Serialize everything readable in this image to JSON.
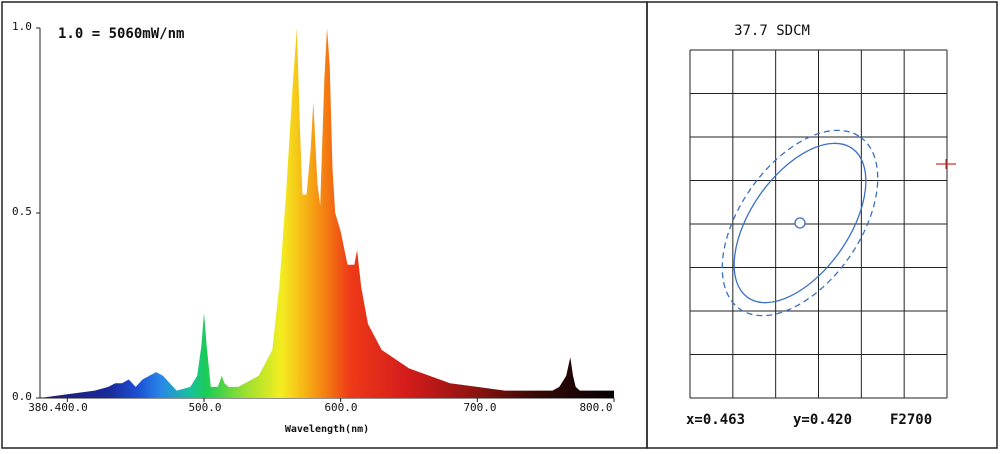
{
  "chart_data": [
    {
      "type": "area",
      "title": "1.0 = 5060mW/nm",
      "xlabel": "Wavelength(nm)",
      "ylabel": "",
      "xlim": [
        380,
        800
      ],
      "ylim": [
        0,
        1.0
      ],
      "x_tick_labels": [
        "380.400.0",
        "500.0",
        "600.0",
        "700.0",
        "800.0"
      ],
      "x_ticks": [
        400,
        500,
        600,
        700,
        800
      ],
      "y_ticks": [
        0.0,
        0.5,
        1.0
      ],
      "y_tick_labels": [
        "0.0",
        "0.5",
        "1.0"
      ],
      "grid": false,
      "series": [
        {
          "x": [
            380,
            400,
            420,
            430,
            435,
            440,
            445,
            450,
            455,
            460,
            465,
            470,
            475,
            480,
            490,
            495,
            498,
            500,
            502,
            505,
            510,
            513,
            515,
            518,
            525,
            540,
            550,
            555,
            560,
            565,
            568,
            570,
            572,
            575,
            578,
            580,
            583,
            585,
            588,
            590,
            592,
            594,
            596,
            600,
            605,
            610,
            612,
            615,
            620,
            630,
            650,
            680,
            700,
            720,
            740,
            755,
            760,
            765,
            768,
            770,
            772,
            775,
            780,
            800
          ],
          "values": [
            0.0,
            0.01,
            0.02,
            0.03,
            0.04,
            0.04,
            0.05,
            0.03,
            0.05,
            0.06,
            0.07,
            0.06,
            0.04,
            0.02,
            0.03,
            0.06,
            0.14,
            0.23,
            0.14,
            0.03,
            0.03,
            0.06,
            0.04,
            0.03,
            0.03,
            0.06,
            0.13,
            0.3,
            0.55,
            0.85,
            1.0,
            0.75,
            0.55,
            0.55,
            0.67,
            0.8,
            0.58,
            0.52,
            0.86,
            1.0,
            0.9,
            0.62,
            0.5,
            0.45,
            0.36,
            0.36,
            0.4,
            0.3,
            0.2,
            0.13,
            0.08,
            0.04,
            0.03,
            0.02,
            0.02,
            0.02,
            0.03,
            0.06,
            0.11,
            0.06,
            0.03,
            0.02,
            0.02,
            0.02
          ]
        }
      ]
    },
    {
      "type": "scatter",
      "title": "37.7 SDCM",
      "point": {
        "x": 0.463,
        "y": 0.42
      },
      "grid": true,
      "labels": {
        "x": "x=0.463",
        "y": "y=0.420",
        "cct": "F2700"
      }
    }
  ],
  "colors": {
    "border": "#222222",
    "grid": "#222222",
    "ellipse": "#3a6fc4",
    "marker": "#d23030"
  }
}
